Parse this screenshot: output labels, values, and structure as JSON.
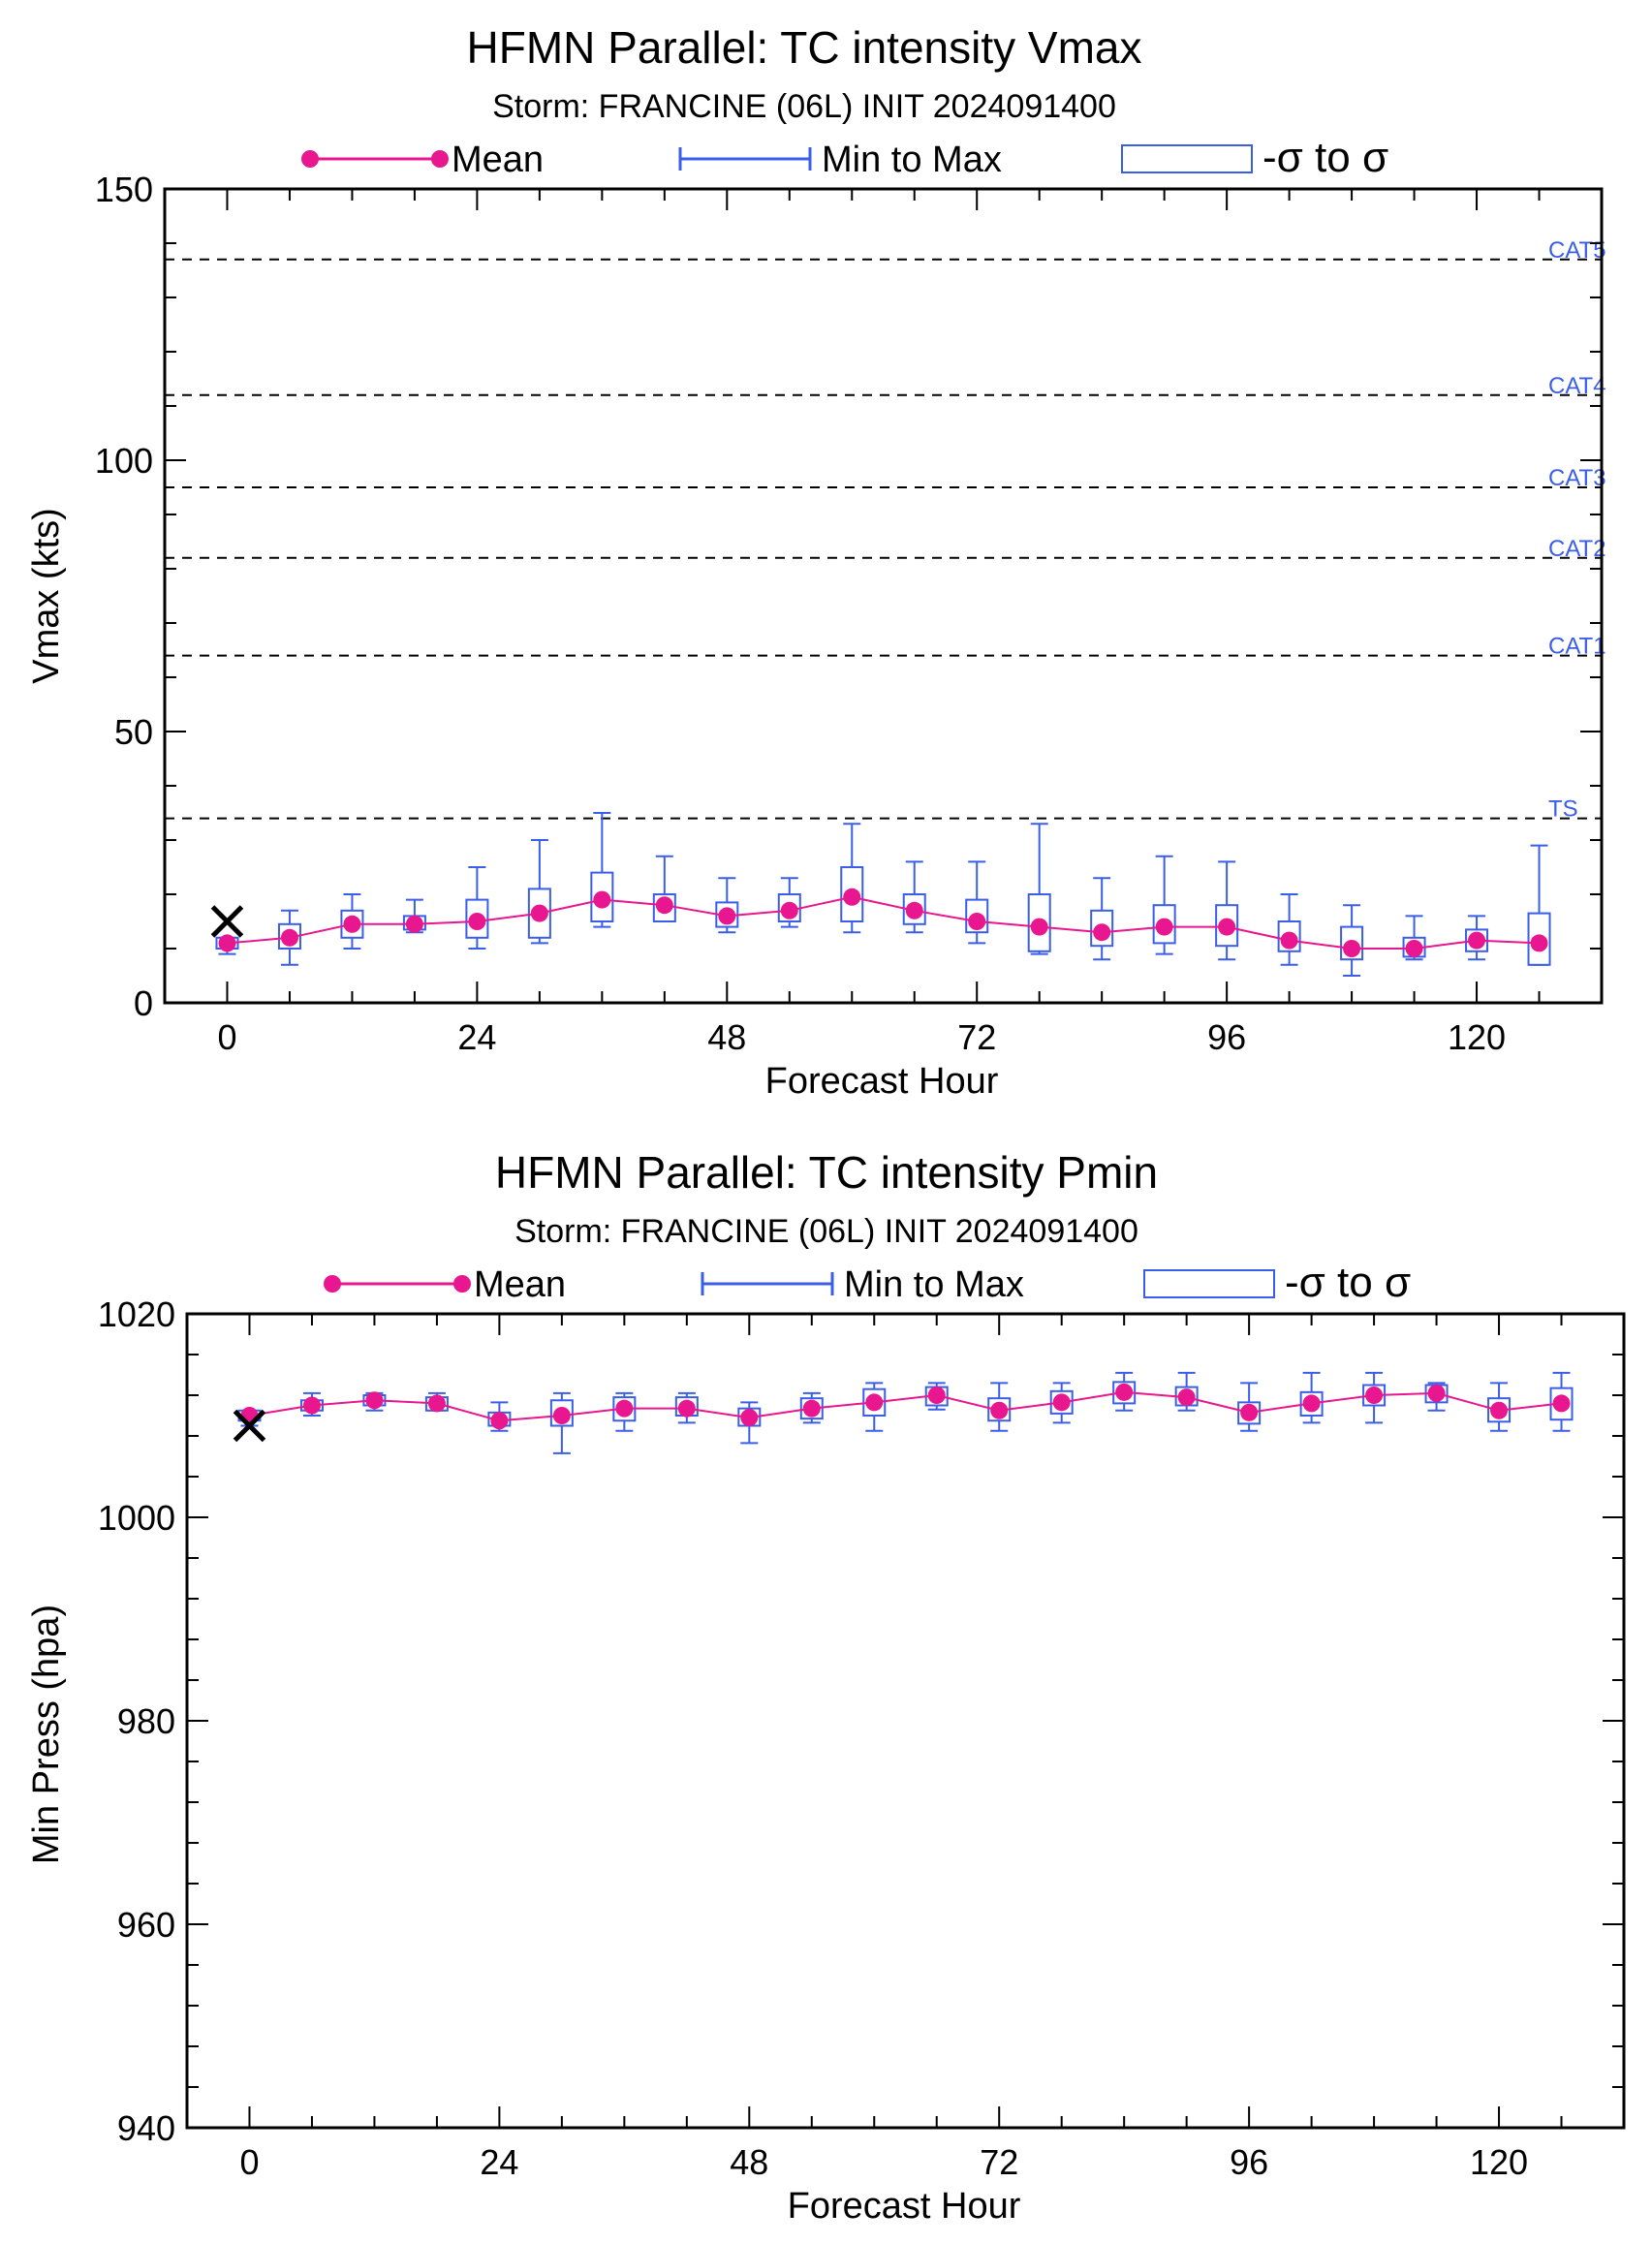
{
  "colors": {
    "mean": "#e8168f",
    "ensemble": "#3a5ee8",
    "axis": "#000000",
    "ref_line": "#000000"
  },
  "legend": {
    "mean": "Mean",
    "range": "Min to Max",
    "sigma": "-σ to σ"
  },
  "chart_data": [
    {
      "type": "box",
      "title": "HFMN Parallel: TC intensity Vmax",
      "subtitle": "Storm: FRANCINE (06L) INIT 2024091400",
      "xlabel": "Forecast Hour",
      "ylabel": "Vmax (kts)",
      "xlim": [
        -6,
        132
      ],
      "ylim": [
        0,
        150
      ],
      "xticks": [
        0,
        24,
        48,
        72,
        96,
        120
      ],
      "yticks": [
        0,
        50,
        100,
        150
      ],
      "y_minor_step": 10,
      "observed": {
        "x": 0,
        "y": 15
      },
      "reference_lines": [
        {
          "label": "TS",
          "y": 34
        },
        {
          "label": "CAT1",
          "y": 64
        },
        {
          "label": "CAT2",
          "y": 82
        },
        {
          "label": "CAT3",
          "y": 95
        },
        {
          "label": "CAT4",
          "y": 112
        },
        {
          "label": "CAT5",
          "y": 137
        }
      ],
      "series": [
        {
          "name": "Mean",
          "x": [
            0,
            6,
            12,
            18,
            24,
            30,
            36,
            42,
            48,
            54,
            60,
            66,
            72,
            78,
            84,
            90,
            96,
            102,
            108,
            114,
            120,
            126
          ],
          "values": [
            11,
            12,
            14.5,
            14.5,
            15,
            16.5,
            19,
            18,
            16,
            17,
            19.5,
            17,
            15,
            14,
            13,
            14,
            14,
            11.5,
            10,
            10,
            11.5,
            11
          ]
        },
        {
          "name": "Min to Max",
          "x": [
            0,
            6,
            12,
            18,
            24,
            30,
            36,
            42,
            48,
            54,
            60,
            66,
            72,
            78,
            84,
            90,
            96,
            102,
            108,
            114,
            120,
            126
          ],
          "min": [
            9,
            7,
            10,
            13,
            10,
            11,
            14,
            15,
            13,
            14,
            13,
            13,
            11,
            9,
            8,
            9,
            8,
            7,
            5,
            8,
            8,
            7
          ],
          "max": [
            12,
            17,
            20,
            19,
            25,
            30,
            35,
            27,
            23,
            23,
            33,
            26,
            26,
            33,
            23,
            27,
            26,
            20,
            18,
            16,
            16,
            29
          ]
        },
        {
          "name": "-σ to σ",
          "x": [
            0,
            6,
            12,
            18,
            24,
            30,
            36,
            42,
            48,
            54,
            60,
            66,
            72,
            78,
            84,
            90,
            96,
            102,
            108,
            114,
            120,
            126
          ],
          "low": [
            10,
            10,
            12,
            13.5,
            12,
            12,
            15,
            15,
            14,
            15,
            15,
            14.5,
            13,
            9.5,
            10.5,
            11,
            10.5,
            9.5,
            8,
            8.5,
            9.5,
            7
          ],
          "high": [
            12,
            14.5,
            17,
            16,
            19,
            21,
            24,
            20,
            18.5,
            20,
            25,
            20,
            19,
            20,
            17,
            18,
            18,
            15,
            14,
            12,
            13.5,
            16.5
          ]
        }
      ]
    },
    {
      "type": "box",
      "title": "HFMN Parallel: TC intensity Pmin",
      "subtitle": "Storm: FRANCINE (06L) INIT 2024091400",
      "xlabel": "Forecast Hour",
      "ylabel": "Min Press (hpa)",
      "xlim": [
        -6,
        132
      ],
      "ylim": [
        940,
        1020
      ],
      "xticks": [
        0,
        24,
        48,
        72,
        96,
        120
      ],
      "yticks": [
        940,
        960,
        980,
        1000,
        1020
      ],
      "y_minor_step": 4,
      "observed": {
        "x": 0,
        "y": 1009
      },
      "reference_lines": [],
      "series": [
        {
          "name": "Mean",
          "x": [
            0,
            6,
            12,
            18,
            24,
            30,
            36,
            42,
            48,
            54,
            60,
            66,
            72,
            78,
            84,
            90,
            96,
            102,
            108,
            114,
            120,
            126
          ],
          "values": [
            1010,
            1011,
            1011.5,
            1011.2,
            1009.5,
            1010,
            1010.7,
            1010.7,
            1009.8,
            1010.7,
            1011.3,
            1012,
            1010.5,
            1011.3,
            1012.3,
            1011.8,
            1010.3,
            1011.2,
            1012,
            1012.2,
            1010.5,
            1011.2
          ]
        },
        {
          "name": "Min to Max",
          "x": [
            0,
            6,
            12,
            18,
            24,
            30,
            36,
            42,
            48,
            54,
            60,
            66,
            72,
            78,
            84,
            90,
            96,
            102,
            108,
            114,
            120,
            126
          ],
          "min": [
            1009,
            1010,
            1010.5,
            1010.5,
            1008.5,
            1006.3,
            1008.5,
            1009.3,
            1007.3,
            1009.3,
            1008.5,
            1010.6,
            1008.5,
            1009.3,
            1010.5,
            1010.5,
            1008.5,
            1009.3,
            1009.3,
            1010.5,
            1008.5,
            1008.5
          ],
          "max": [
            1010.3,
            1012.2,
            1012.2,
            1012.2,
            1011.3,
            1012.2,
            1012.2,
            1012.2,
            1011.3,
            1012.2,
            1013.2,
            1013.2,
            1013.2,
            1013.2,
            1014.2,
            1014.2,
            1013.2,
            1014.2,
            1014.2,
            1013.2,
            1013.2,
            1014.2
          ]
        },
        {
          "name": "-σ to σ",
          "x": [
            0,
            6,
            12,
            18,
            24,
            30,
            36,
            42,
            48,
            54,
            60,
            66,
            72,
            78,
            84,
            90,
            96,
            102,
            108,
            114,
            120,
            126
          ],
          "low": [
            1009.5,
            1010.5,
            1011,
            1010.5,
            1009,
            1009,
            1009.5,
            1010,
            1009,
            1009.7,
            1010,
            1011,
            1009.5,
            1010.2,
            1011.2,
            1011,
            1009.2,
            1010,
            1011,
            1011.3,
            1009.4,
            1009.6
          ],
          "high": [
            1010.5,
            1011.5,
            1012,
            1011.8,
            1010.3,
            1011.5,
            1011.8,
            1011.8,
            1010.7,
            1011.7,
            1012.6,
            1012.8,
            1011.7,
            1012.4,
            1013.3,
            1012.8,
            1011.3,
            1012.3,
            1013,
            1013,
            1011.7,
            1012.7
          ]
        }
      ]
    }
  ]
}
